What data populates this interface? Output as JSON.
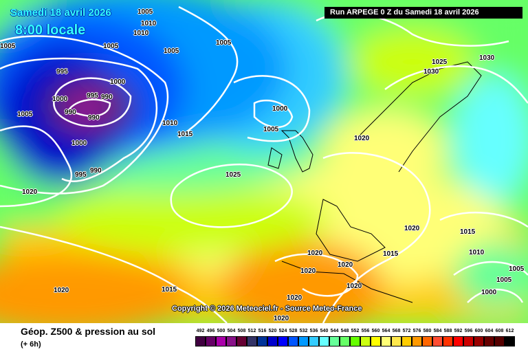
{
  "header": {
    "date": "Samedi 18 avril 2026",
    "time": "8:00 locale",
    "run": "Run ARPEGE 0 Z du Samedi 18 avril 2026"
  },
  "copyright": "Copyright © 2026 Meteociel.fr - Source Meteo-France",
  "footer": {
    "title": "Géop. Z500 & pression au sol",
    "subtitle": "(+ 6h)"
  },
  "legend": {
    "values": [
      "492",
      "496",
      "500",
      "504",
      "508",
      "512",
      "516",
      "520",
      "524",
      "528",
      "532",
      "536",
      "540",
      "544",
      "548",
      "552",
      "556",
      "560",
      "564",
      "568",
      "572",
      "576",
      "580",
      "584",
      "588",
      "592",
      "596",
      "600",
      "604",
      "608",
      "612"
    ],
    "colors": [
      "#400040",
      "#660066",
      "#aa00aa",
      "#881188",
      "#660033",
      "#333366",
      "#003399",
      "#0000cc",
      "#0000ff",
      "#0055ff",
      "#0099ff",
      "#33ccff",
      "#66ffff",
      "#66ff99",
      "#66ff66",
      "#66ff00",
      "#ccff11",
      "#ffff00",
      "#ffff77",
      "#ffe84d",
      "#ffcc00",
      "#ff9900",
      "#ff6600",
      "#ff4d33",
      "#ff3300",
      "#ff0000",
      "#cc0000",
      "#990000",
      "#660000",
      "#550000",
      "#000000"
    ]
  },
  "isobar_labels": [
    "1005",
    "1005",
    "1005",
    "1010",
    "1010",
    "1005",
    "1005",
    "995",
    "1000",
    "995",
    "990",
    "1000",
    "990",
    "990",
    "1005",
    "1000",
    "1010",
    "1015",
    "1000",
    "1005",
    "990",
    "995",
    "1020",
    "1025",
    "1020",
    "1025",
    "1030",
    "1030",
    "1020",
    "1015",
    "1010",
    "1005",
    "1005",
    "1000",
    "1015",
    "1020",
    "1020",
    "1020",
    "1020",
    "1015",
    "1020",
    "1020",
    "1020"
  ]
}
